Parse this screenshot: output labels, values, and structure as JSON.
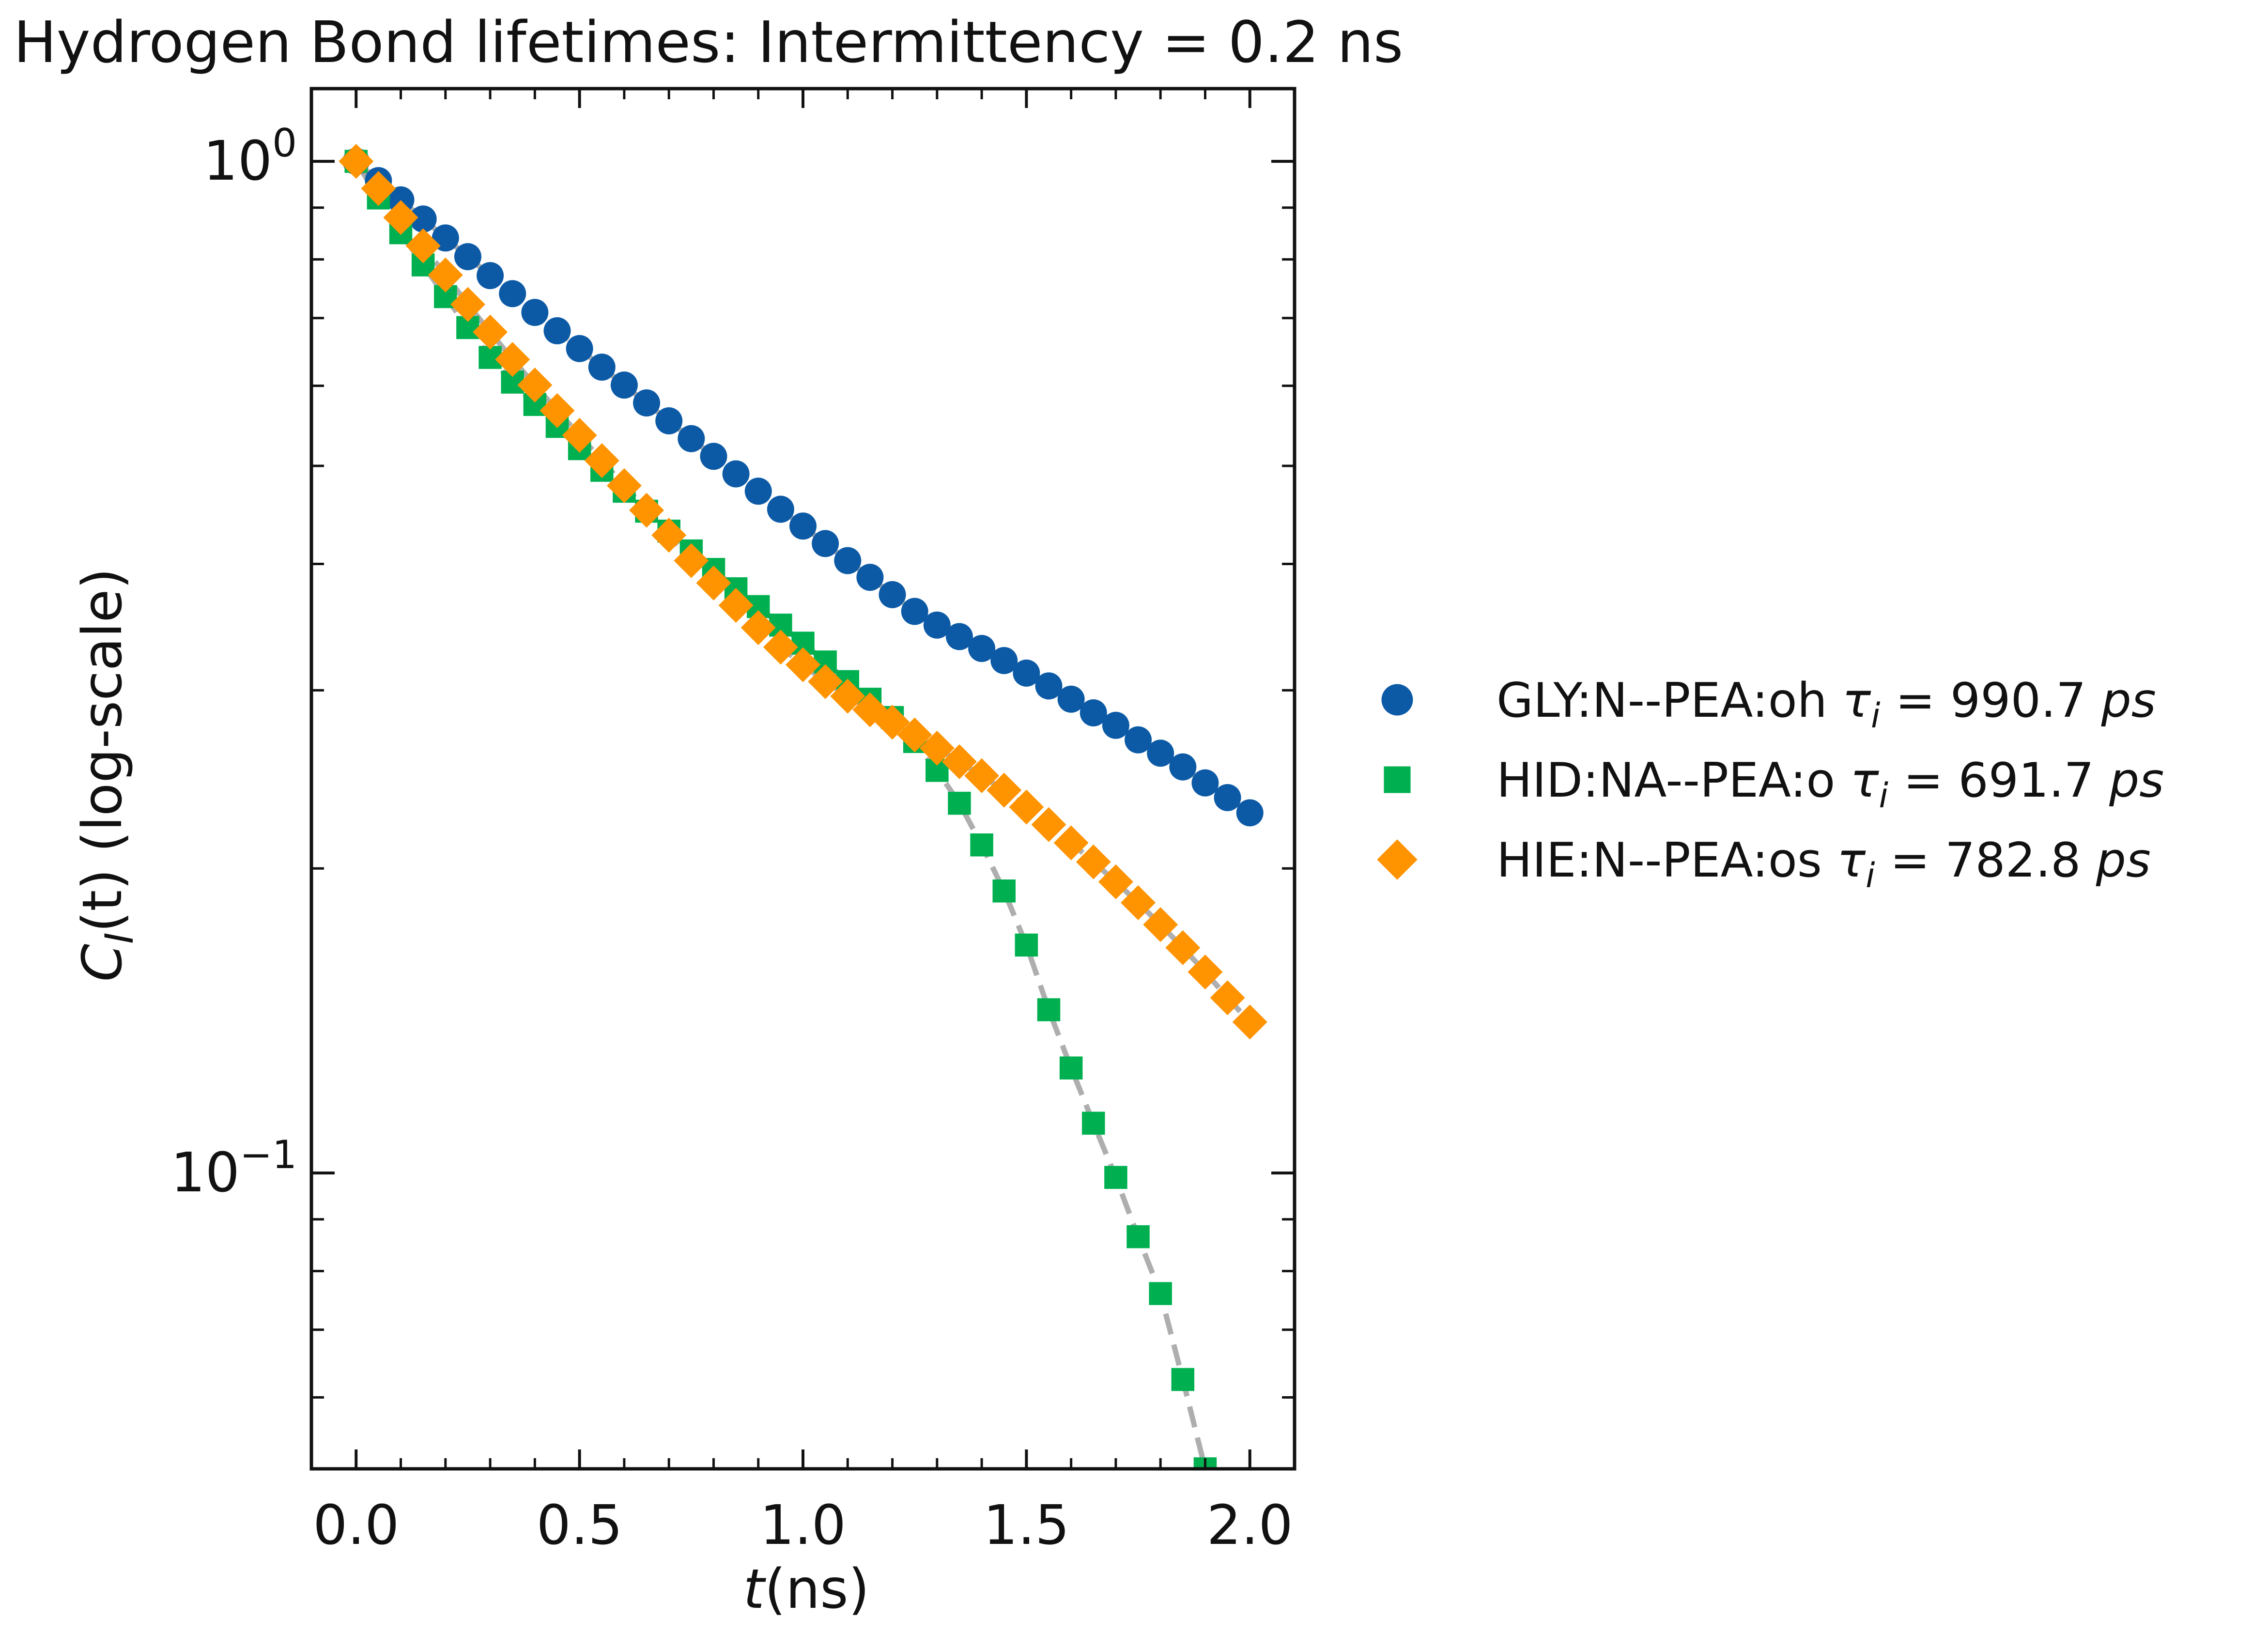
{
  "chart_data": {
    "type": "scatter",
    "title": "Hydrogen Bond lifetimes: Intermittency = 0.2 ns",
    "xlabel": {
      "var": "t",
      "unit": "(ns)"
    },
    "ylabel": {
      "main": "C",
      "sub": "I",
      "arg": "(t)",
      "suffix": "(log-scale)"
    },
    "x_ticks": [
      "0.0",
      "0.5",
      "1.0",
      "1.5",
      "2.0"
    ],
    "y_ticks": [
      {
        "base": "10",
        "exp": "0"
      },
      {
        "base": "10",
        "exp": "−1"
      }
    ],
    "xlim": [
      -0.1,
      2.1
    ],
    "ylim": [
      0.051,
      1.18
    ],
    "yscale": "log",
    "grid": false,
    "legend_position": "right",
    "series": [
      {
        "name": "GLY:N--PEA:oh",
        "tau_symbol": "τ",
        "tau_sub": "i",
        "tau_value": "= 990.7",
        "tau_unit": "ps",
        "marker": "circle",
        "color": "#0c5aa6",
        "x": [
          0,
          0.05,
          0.1,
          0.15,
          0.2,
          0.25,
          0.3,
          0.35,
          0.4,
          0.45,
          0.5,
          0.55,
          0.6,
          0.65,
          0.7,
          0.75,
          0.8,
          0.85,
          0.9,
          0.95,
          1.0,
          1.05,
          1.1,
          1.15,
          1.2,
          1.25,
          1.3,
          1.35,
          1.4,
          1.45,
          1.5,
          1.55,
          1.6,
          1.65,
          1.7,
          1.75,
          1.8,
          1.85,
          1.9,
          1.95,
          2.0
        ],
        "y": [
          1.0,
          0.957,
          0.916,
          0.877,
          0.84,
          0.805,
          0.771,
          0.74,
          0.709,
          0.68,
          0.653,
          0.626,
          0.601,
          0.577,
          0.554,
          0.532,
          0.511,
          0.491,
          0.472,
          0.453,
          0.436,
          0.419,
          0.403,
          0.388,
          0.373,
          0.359,
          0.348,
          0.339,
          0.33,
          0.321,
          0.312,
          0.303,
          0.294,
          0.285,
          0.277,
          0.268,
          0.26,
          0.252,
          0.243,
          0.235,
          0.227
        ]
      },
      {
        "name": "HID:NA--PEA:o",
        "tau_symbol": "τ",
        "tau_sub": "i",
        "tau_value": "= 691.7",
        "tau_unit": "ps",
        "marker": "square",
        "color": "#00b050",
        "x": [
          0,
          0.05,
          0.1,
          0.15,
          0.2,
          0.25,
          0.3,
          0.35,
          0.4,
          0.45,
          0.5,
          0.55,
          0.6,
          0.65,
          0.7,
          0.75,
          0.8,
          0.85,
          0.9,
          0.95,
          1.0,
          1.05,
          1.1,
          1.15,
          1.2,
          1.25,
          1.3,
          1.35,
          1.4,
          1.45,
          1.5,
          1.55,
          1.6,
          1.65,
          1.7,
          1.75,
          1.8,
          1.85,
          1.9
        ],
        "y": [
          1.0,
          0.92,
          0.85,
          0.79,
          0.735,
          0.685,
          0.64,
          0.605,
          0.575,
          0.547,
          0.52,
          0.495,
          0.472,
          0.451,
          0.431,
          0.412,
          0.395,
          0.378,
          0.363,
          0.348,
          0.334,
          0.32,
          0.306,
          0.294,
          0.282,
          0.267,
          0.25,
          0.232,
          0.211,
          0.19,
          0.168,
          0.145,
          0.127,
          0.112,
          0.099,
          0.0865,
          0.076,
          0.0625,
          0.051
        ]
      },
      {
        "name": "HIE:N--PEA:os",
        "tau_symbol": "τ",
        "tau_sub": "i",
        "tau_value": "= 782.8",
        "tau_unit": "ps",
        "marker": "diamond",
        "color": "#ff9300",
        "x": [
          0,
          0.05,
          0.1,
          0.15,
          0.2,
          0.25,
          0.3,
          0.35,
          0.4,
          0.45,
          0.5,
          0.55,
          0.6,
          0.65,
          0.7,
          0.75,
          0.8,
          0.85,
          0.9,
          0.95,
          1.0,
          1.05,
          1.1,
          1.15,
          1.2,
          1.25,
          1.3,
          1.35,
          1.4,
          1.45,
          1.5,
          1.55,
          1.6,
          1.65,
          1.7,
          1.75,
          1.8,
          1.85,
          1.9,
          1.95,
          2.0
        ],
        "y": [
          1.0,
          0.94,
          0.88,
          0.825,
          0.772,
          0.722,
          0.678,
          0.637,
          0.601,
          0.567,
          0.536,
          0.506,
          0.478,
          0.452,
          0.427,
          0.403,
          0.383,
          0.364,
          0.346,
          0.331,
          0.318,
          0.306,
          0.296,
          0.287,
          0.279,
          0.271,
          0.263,
          0.255,
          0.247,
          0.239,
          0.23,
          0.221,
          0.212,
          0.203,
          0.194,
          0.185,
          0.176,
          0.167,
          0.158,
          0.149,
          0.141
        ]
      }
    ]
  }
}
